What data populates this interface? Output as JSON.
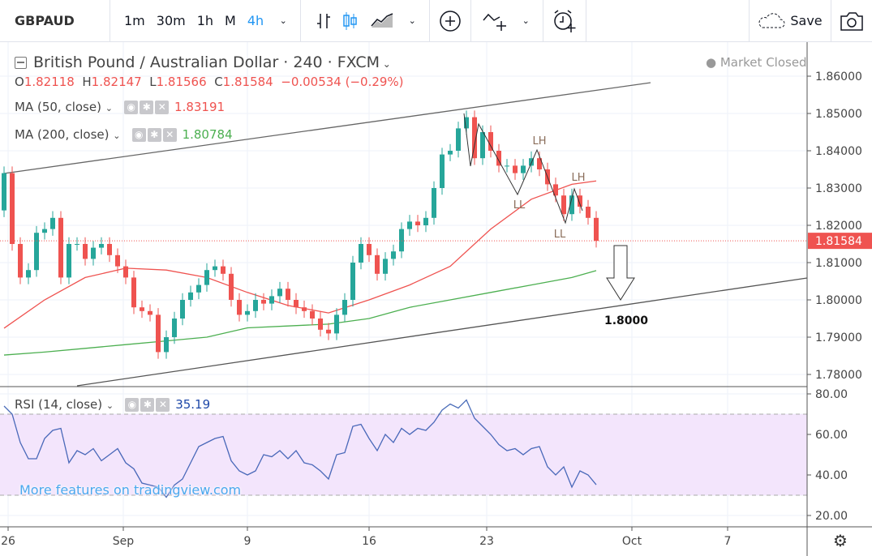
{
  "toolbar": {
    "symbol": "GBPAUD",
    "timeframes": [
      "1m",
      "30m",
      "1h",
      "M",
      "4h"
    ],
    "active_timeframe": "4h",
    "save_label": "Save",
    "icons": [
      "bars-chart-icon",
      "candles-chart-icon",
      "area-chart-icon",
      "indicators-add-icon",
      "compare-icon",
      "alert-add-icon",
      "cloud-save-icon",
      "camera-icon"
    ]
  },
  "legend": {
    "title": "British Pound / Australian Dollar · 240 · FXCM",
    "market_status": "Market Closed",
    "ohlc": {
      "o_label": "O",
      "o": "1.82118",
      "h_label": "H",
      "h": "1.82147",
      "l_label": "L",
      "l": "1.81566",
      "c_label": "C",
      "c": "1.81584",
      "change": "−0.00534 (−0.29%)"
    },
    "ma50": {
      "label": "MA (50, close)",
      "value": "1.83191",
      "color": "#ef5350"
    },
    "ma200": {
      "label": "MA (200, close)",
      "value": "1.80784",
      "color": "#4caf50"
    },
    "rsi": {
      "label": "RSI (14, close)",
      "value": "35.19",
      "color": "#1e48a8"
    }
  },
  "watermark": "More features on tradingview.com",
  "chart_data": {
    "type": "candlestick",
    "symbol": "GBPAUD",
    "interval": "240",
    "up_color": "#26a69a",
    "down_color": "#ef5350",
    "closes": [
      1.834,
      1.815,
      1.806,
      1.808,
      1.818,
      1.819,
      1.822,
      1.806,
      1.815,
      1.815,
      1.811,
      1.814,
      1.815,
      1.812,
      1.809,
      1.806,
      1.798,
      1.797,
      1.796,
      1.786,
      1.79,
      1.795,
      1.8,
      1.802,
      1.804,
      1.808,
      1.809,
      1.807,
      1.8,
      1.796,
      1.797,
      1.8,
      1.799,
      1.801,
      1.803,
      1.8,
      1.798,
      1.797,
      1.795,
      1.792,
      1.791,
      1.796,
      1.8,
      1.81,
      1.815,
      1.812,
      1.807,
      1.811,
      1.813,
      1.819,
      1.821,
      1.82,
      1.822,
      1.83,
      1.839,
      1.84,
      1.846,
      1.849,
      1.838,
      1.845,
      1.84,
      1.836,
      1.836,
      1.834,
      1.836,
      1.838,
      1.835,
      1.831,
      1.828,
      1.823,
      1.828,
      1.825,
      1.822,
      1.81584
    ],
    "ma50": [
      1.7924,
      1.8,
      1.806,
      1.8085,
      1.808,
      1.806,
      1.802,
      1.7985,
      1.7965,
      1.8,
      1.804,
      1.809,
      1.819,
      1.827,
      1.831,
      1.83191
    ],
    "ma200": [
      1.7852,
      1.786,
      1.787,
      1.788,
      1.789,
      1.79,
      1.7925,
      1.793,
      1.7935,
      1.795,
      1.798,
      1.8,
      1.802,
      1.804,
      1.806,
      1.80784
    ],
    "rsi": [
      74,
      70,
      56,
      48,
      48,
      58,
      62,
      63,
      46,
      52,
      50,
      53,
      47,
      50,
      53,
      46,
      43,
      36,
      35,
      34,
      29,
      35,
      38,
      46,
      54,
      56,
      58,
      59,
      47,
      42,
      40,
      42,
      50,
      49,
      52,
      48,
      52,
      46,
      45,
      42,
      38,
      50,
      51,
      64,
      65,
      58,
      52,
      60,
      56,
      63,
      60,
      63,
      62,
      66,
      72,
      75,
      73,
      77,
      68,
      64,
      60,
      55,
      52,
      53,
      50,
      53,
      54,
      44,
      40,
      44,
      34,
      42,
      40,
      35.19
    ],
    "price_ticks": [
      "1.86000",
      "1.85000",
      "1.84000",
      "1.83000",
      "1.82000",
      "1.81000",
      "1.80000",
      "1.79000",
      "1.78000"
    ],
    "rsi_ticks": [
      "80.00",
      "60.00",
      "40.00",
      "20.00"
    ],
    "rsi_bands": [
      70,
      30
    ],
    "x_ticks": [
      "26",
      "Sep",
      "9",
      "16",
      "23",
      "Oct",
      "7"
    ],
    "last_price": "1.81584",
    "annotations": {
      "pattern_labels": [
        "LH",
        "LL",
        "LH",
        "LL"
      ],
      "target": "1.8000"
    },
    "grid": true
  }
}
